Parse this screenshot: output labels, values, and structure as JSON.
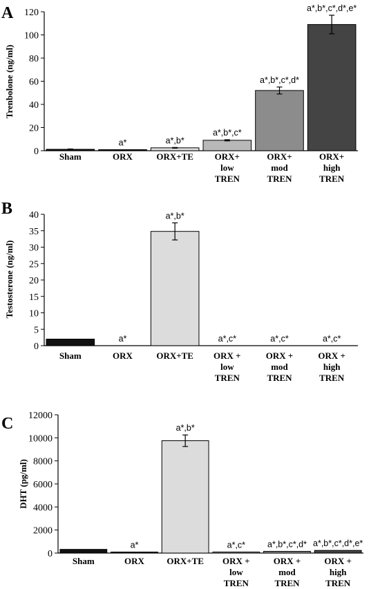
{
  "chart_data": [
    {
      "panel": "A",
      "type": "bar",
      "ylabel": "Trenbolone (ng/ml)",
      "ylim": [
        0,
        120
      ],
      "yticks": [
        0,
        20,
        40,
        60,
        80,
        100,
        120
      ],
      "categories": [
        [
          "Sham"
        ],
        [
          "ORX"
        ],
        [
          "ORX+TE"
        ],
        [
          "ORX+",
          "low",
          "TREN"
        ],
        [
          "ORX+",
          "mod",
          "TREN"
        ],
        [
          "ORX+",
          "high",
          "TREN"
        ]
      ],
      "values": [
        1.2,
        0.6,
        2.5,
        9,
        52,
        109
      ],
      "errors": [
        0.3,
        0.2,
        0.3,
        0.5,
        3,
        8
      ],
      "colors": [
        "#111111",
        "#111111",
        "#dcdcdc",
        "#b8b8b8",
        "#8c8c8c",
        "#444444"
      ],
      "annotations": [
        "",
        "a*",
        "a*,b*",
        "a*,b*,c*",
        "a*,b*,c*,d*",
        "a*,b*,c*,d*,e*"
      ]
    },
    {
      "panel": "B",
      "type": "bar",
      "ylabel": "Testosterone (ng/ml)",
      "ylim": [
        0,
        40
      ],
      "yticks": [
        0,
        5,
        10,
        15,
        20,
        25,
        30,
        35,
        40
      ],
      "categories": [
        [
          "Sham"
        ],
        [
          "ORX"
        ],
        [
          "ORX+TE"
        ],
        [
          "ORX +",
          "low",
          "TREN"
        ],
        [
          "ORX +",
          "mod",
          "TREN"
        ],
        [
          "ORX +",
          "high",
          "TREN"
        ]
      ],
      "values": [
        2,
        0,
        34.8,
        0,
        0,
        0
      ],
      "errors": [
        0,
        0,
        2.6,
        0,
        0,
        0
      ],
      "colors": [
        "#111111",
        "#111111",
        "#dcdcdc",
        "#b8b8b8",
        "#8c8c8c",
        "#444444"
      ],
      "annotations": [
        "",
        "a*",
        "a*,b*",
        "a*,c*",
        "a*,c*",
        "a*,c*"
      ]
    },
    {
      "panel": "C",
      "type": "bar",
      "ylabel": "DHT (pg/ml)",
      "ylim": [
        0,
        12000
      ],
      "yticks": [
        0,
        2000,
        4000,
        6000,
        8000,
        10000,
        12000
      ],
      "categories": [
        [
          "Sham"
        ],
        [
          "ORX"
        ],
        [
          "ORX+TE"
        ],
        [
          "ORX +",
          "low",
          "TREN"
        ],
        [
          "ORX +",
          "mod",
          "TREN"
        ],
        [
          "ORX +",
          "high",
          "TREN"
        ]
      ],
      "values": [
        320,
        90,
        9750,
        60,
        150,
        230
      ],
      "errors": [
        0,
        0,
        500,
        0,
        0,
        0
      ],
      "colors": [
        "#111111",
        "#111111",
        "#dcdcdc",
        "#b8b8b8",
        "#8c8c8c",
        "#444444"
      ],
      "annotations": [
        "",
        "a*",
        "a*,b*",
        "a*,c*",
        "a*,b*,c*,d*",
        "a*,b*,c*,d*,e*"
      ]
    }
  ]
}
